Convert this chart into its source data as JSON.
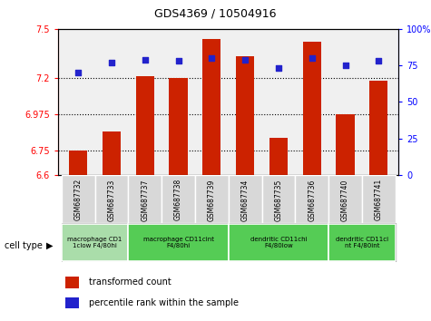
{
  "title": "GDS4369 / 10504916",
  "samples": [
    "GSM687732",
    "GSM687733",
    "GSM687737",
    "GSM687738",
    "GSM687739",
    "GSM687734",
    "GSM687735",
    "GSM687736",
    "GSM687740",
    "GSM687741"
  ],
  "transformed_count": [
    6.75,
    6.87,
    7.21,
    7.2,
    7.44,
    7.33,
    6.83,
    7.42,
    6.975,
    7.18
  ],
  "percentile_rank": [
    70,
    77,
    79,
    78,
    80,
    79,
    73,
    80,
    75,
    78
  ],
  "ylim_left": [
    6.6,
    7.5
  ],
  "ylim_right": [
    0,
    100
  ],
  "yticks_left": [
    6.6,
    6.75,
    6.975,
    7.2,
    7.5
  ],
  "yticks_right": [
    0,
    25,
    50,
    75,
    100
  ],
  "ytick_labels_left": [
    "6.6",
    "6.75",
    "6.975",
    "7.2",
    "7.5"
  ],
  "ytick_labels_right": [
    "0",
    "25",
    "50",
    "75",
    "100%"
  ],
  "hlines": [
    6.75,
    6.975,
    7.2
  ],
  "bar_color": "#cc2200",
  "dot_color": "#2222cc",
  "bg_color": "#f0f0f0",
  "cell_type_groups": [
    {
      "label": "macrophage CD1\n1clow F4/80hi",
      "start": 0,
      "end": 2,
      "color": "#aaddaa"
    },
    {
      "label": "macrophage CD11cint\nF4/80hi",
      "start": 2,
      "end": 5,
      "color": "#55cc55"
    },
    {
      "label": "dendritic CD11chi\nF4/80low",
      "start": 5,
      "end": 8,
      "color": "#55cc55"
    },
    {
      "label": "dendritic CD11ci\nnt F4/80int",
      "start": 8,
      "end": 10,
      "color": "#55cc55"
    }
  ],
  "legend_red_label": "transformed count",
  "legend_blue_label": "percentile rank within the sample",
  "cell_type_label": "cell type",
  "bar_width": 0.55
}
